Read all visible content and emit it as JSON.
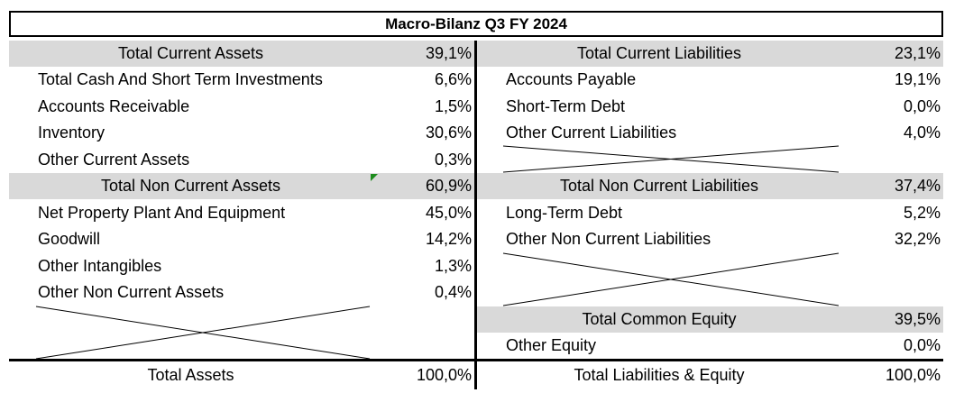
{
  "title": "Macro-Bilanz Q3 FY 2024",
  "assets": {
    "current_total": {
      "label": "Total Current Assets",
      "value": "39,1%"
    },
    "current_items": [
      {
        "label": "Total Cash And Short Term Investments",
        "value": "6,6%"
      },
      {
        "label": "Accounts Receivable",
        "value": "1,5%"
      },
      {
        "label": "Inventory",
        "value": "30,6%"
      },
      {
        "label": "Other Current Assets",
        "value": "0,3%"
      }
    ],
    "noncurrent_total": {
      "label": "Total Non Current Assets",
      "value": "60,9%"
    },
    "noncurrent_items": [
      {
        "label": "Net Property Plant And Equipment",
        "value": "45,0%"
      },
      {
        "label": "Goodwill",
        "value": "14,2%"
      },
      {
        "label": "Other Intangibles",
        "value": "1,3%"
      },
      {
        "label": "Other Non Current Assets",
        "value": "0,4%"
      }
    ],
    "grand_total": {
      "label": "Total Assets",
      "value": "100,0%"
    }
  },
  "liabilities": {
    "current_total": {
      "label": "Total Current Liabilities",
      "value": "23,1%"
    },
    "current_items": [
      {
        "label": "Accounts Payable",
        "value": "19,1%"
      },
      {
        "label": "Short-Term Debt",
        "value": "0,0%"
      },
      {
        "label": "Other Current Liabilities",
        "value": "4,0%"
      }
    ],
    "noncurrent_total": {
      "label": "Total Non Current Liabilities",
      "value": "37,4%"
    },
    "noncurrent_items": [
      {
        "label": "Long-Term Debt",
        "value": "5,2%"
      },
      {
        "label": "Other Non Current Liabilities",
        "value": "32,2%"
      }
    ],
    "equity_total": {
      "label": "Total Common Equity",
      "value": "39,5%"
    },
    "equity_items": [
      {
        "label": "Other Equity",
        "value": "0,0%"
      }
    ],
    "grand_total": {
      "label": "Total Liabilities & Equity",
      "value": "100,0%"
    }
  },
  "colors": {
    "total_row_bg": "#d9d9d9",
    "border": "#000000",
    "marker": "#1e8c1e"
  }
}
